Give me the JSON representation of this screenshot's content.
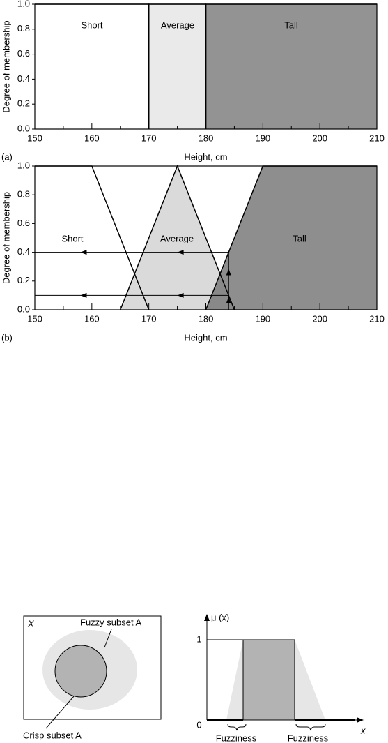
{
  "chart_data": [
    {
      "type": "area",
      "panel_label": "(a)",
      "xlabel": "Height, cm",
      "ylabel": "Degree of membership",
      "xlim": [
        150,
        210
      ],
      "ylim": [
        0,
        1
      ],
      "xticks": [
        150,
        160,
        170,
        180,
        190,
        200,
        210
      ],
      "xminorticks": [
        155,
        165,
        175,
        185,
        195,
        205
      ],
      "yticks": [
        {
          "value": 0,
          "label": "0.0"
        },
        0.2,
        0.4,
        0.6,
        0.8,
        {
          "value": 1,
          "label": "1.0"
        }
      ],
      "series": [
        {
          "name": "Short",
          "color": "#ffffff",
          "x": [
            150,
            170,
            170
          ],
          "values": [
            1,
            1,
            0
          ]
        },
        {
          "name": "Average",
          "color": "#e6e6e6",
          "x": [
            170,
            170,
            180,
            180
          ],
          "values": [
            0,
            1,
            1,
            0
          ]
        },
        {
          "name": "Tall",
          "color": "#808080",
          "x": [
            180,
            180,
            210
          ],
          "values": [
            0,
            1,
            1
          ]
        }
      ]
    },
    {
      "type": "area",
      "panel_label": "(b)",
      "xlabel": "Height, cm",
      "ylabel": "Degree of membership",
      "xlim": [
        150,
        210
      ],
      "ylim": [
        0,
        1
      ],
      "xticks": [
        150,
        160,
        170,
        180,
        190,
        200,
        210
      ],
      "xminorticks": [
        155,
        165,
        175,
        185,
        195,
        205
      ],
      "yticks": [
        {
          "value": 0,
          "label": "0.0"
        },
        0.2,
        0.4,
        0.6,
        0.8,
        {
          "value": 1,
          "label": "1.0"
        }
      ],
      "series": [
        {
          "name": "Short",
          "color": "#ffffff",
          "x": [
            150,
            160,
            170
          ],
          "values": [
            1,
            1,
            0
          ]
        },
        {
          "name": "Average",
          "color": "#d4d4d4",
          "x": [
            165,
            175,
            185
          ],
          "values": [
            0,
            1,
            0
          ]
        },
        {
          "name": "Tall",
          "color": "#7a7a7a",
          "x": [
            180,
            190,
            210
          ],
          "values": [
            0,
            1,
            1
          ]
        }
      ],
      "reading": {
        "x": 184,
        "levels": [
          0.4,
          0.1
        ]
      }
    }
  ],
  "diagram": {
    "left": {
      "set_label": "X",
      "fuzzy_label": "Fuzzy subset A",
      "crisp_label": "Crisp subset A"
    },
    "right": {
      "y_axis_label": "μ (x)",
      "x_axis_label": "x",
      "level_labels": [
        "1",
        "0"
      ],
      "fuzziness_labels": [
        "Fuzziness",
        "Fuzziness"
      ]
    }
  }
}
